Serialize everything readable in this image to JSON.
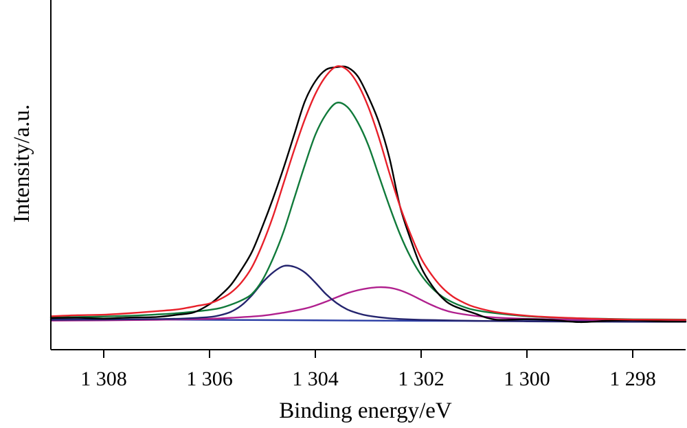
{
  "chart_data": {
    "type": "line",
    "title": "",
    "xlabel": "Binding energy/eV",
    "ylabel": "Intensity/a.u.",
    "xlim": [
      1309,
      1297
    ],
    "x_reversed": true,
    "ylim": [
      -0.1,
      1.1
    ],
    "y_ticks_shown": false,
    "grid": false,
    "legend": "none",
    "x_ticks": [
      {
        "value": 1308,
        "label": "1 308"
      },
      {
        "value": 1306,
        "label": "1 306"
      },
      {
        "value": 1304,
        "label": "1 304"
      },
      {
        "value": 1302,
        "label": "1 302"
      },
      {
        "value": 1300,
        "label": "1 300"
      },
      {
        "value": 1298,
        "label": "1 298"
      }
    ],
    "series": [
      {
        "color": "#000000",
        "style": "noisy",
        "points": [
          [
            1309.0,
            0.011
          ],
          [
            1308.5,
            0.012
          ],
          [
            1308.0,
            0.009
          ],
          [
            1307.5,
            0.013
          ],
          [
            1307.0,
            0.015
          ],
          [
            1306.6,
            0.024
          ],
          [
            1306.3,
            0.033
          ],
          [
            1306.0,
            0.065
          ],
          [
            1305.8,
            0.099
          ],
          [
            1305.6,
            0.14
          ],
          [
            1305.4,
            0.2
          ],
          [
            1305.2,
            0.27
          ],
          [
            1305.0,
            0.37
          ],
          [
            1304.8,
            0.48
          ],
          [
            1304.6,
            0.6
          ],
          [
            1304.4,
            0.73
          ],
          [
            1304.2,
            0.86
          ],
          [
            1304.0,
            0.94
          ],
          [
            1303.8,
            0.985
          ],
          [
            1303.6,
            0.995
          ],
          [
            1303.4,
            0.995
          ],
          [
            1303.2,
            0.96
          ],
          [
            1303.0,
            0.88
          ],
          [
            1302.8,
            0.78
          ],
          [
            1302.6,
            0.64
          ],
          [
            1302.4,
            0.45
          ],
          [
            1302.2,
            0.32
          ],
          [
            1302.0,
            0.21
          ],
          [
            1301.8,
            0.14
          ],
          [
            1301.6,
            0.09
          ],
          [
            1301.4,
            0.06
          ],
          [
            1301.0,
            0.03
          ],
          [
            1300.6,
            0.005
          ],
          [
            1300.0,
            0.006
          ],
          [
            1299.5,
            0.003
          ],
          [
            1299.0,
            -0.005
          ],
          [
            1298.5,
            0.0
          ],
          [
            1298.0,
            0.002
          ],
          [
            1297.5,
            -0.002
          ],
          [
            1297.0,
            -0.003
          ]
        ]
      },
      {
        "color": "#e8202a",
        "style": "envelope",
        "points": [
          [
            1309.0,
            0.018
          ],
          [
            1308.5,
            0.022
          ],
          [
            1308.0,
            0.024
          ],
          [
            1307.5,
            0.03
          ],
          [
            1307.0,
            0.038
          ],
          [
            1306.6,
            0.045
          ],
          [
            1306.2,
            0.06
          ],
          [
            1306.0,
            0.068
          ],
          [
            1305.8,
            0.085
          ],
          [
            1305.6,
            0.11
          ],
          [
            1305.4,
            0.15
          ],
          [
            1305.2,
            0.21
          ],
          [
            1305.0,
            0.3
          ],
          [
            1304.8,
            0.41
          ],
          [
            1304.6,
            0.54
          ],
          [
            1304.4,
            0.67
          ],
          [
            1304.2,
            0.79
          ],
          [
            1304.0,
            0.89
          ],
          [
            1303.8,
            0.96
          ],
          [
            1303.6,
            0.998
          ],
          [
            1303.4,
            0.985
          ],
          [
            1303.2,
            0.93
          ],
          [
            1303.0,
            0.84
          ],
          [
            1302.8,
            0.72
          ],
          [
            1302.6,
            0.58
          ],
          [
            1302.4,
            0.45
          ],
          [
            1302.2,
            0.34
          ],
          [
            1302.0,
            0.245
          ],
          [
            1301.8,
            0.18
          ],
          [
            1301.6,
            0.13
          ],
          [
            1301.4,
            0.095
          ],
          [
            1301.2,
            0.072
          ],
          [
            1301.0,
            0.055
          ],
          [
            1300.6,
            0.035
          ],
          [
            1300.0,
            0.02
          ],
          [
            1299.5,
            0.014
          ],
          [
            1299.0,
            0.01
          ],
          [
            1298.5,
            0.007
          ],
          [
            1298.0,
            0.005
          ],
          [
            1297.0,
            0.004
          ]
        ]
      },
      {
        "color": "#107a3a",
        "style": "component",
        "points": [
          [
            1309.0,
            0.013
          ],
          [
            1308.5,
            0.015
          ],
          [
            1308.0,
            0.017
          ],
          [
            1307.5,
            0.02
          ],
          [
            1307.0,
            0.025
          ],
          [
            1306.6,
            0.03
          ],
          [
            1306.2,
            0.038
          ],
          [
            1306.0,
            0.043
          ],
          [
            1305.8,
            0.05
          ],
          [
            1305.6,
            0.063
          ],
          [
            1305.4,
            0.08
          ],
          [
            1305.2,
            0.105
          ],
          [
            1305.0,
            0.16
          ],
          [
            1304.8,
            0.245
          ],
          [
            1304.6,
            0.35
          ],
          [
            1304.4,
            0.48
          ],
          [
            1304.2,
            0.61
          ],
          [
            1304.0,
            0.73
          ],
          [
            1303.8,
            0.81
          ],
          [
            1303.6,
            0.855
          ],
          [
            1303.4,
            0.84
          ],
          [
            1303.2,
            0.78
          ],
          [
            1303.0,
            0.69
          ],
          [
            1302.8,
            0.57
          ],
          [
            1302.6,
            0.45
          ],
          [
            1302.4,
            0.34
          ],
          [
            1302.2,
            0.25
          ],
          [
            1302.0,
            0.18
          ],
          [
            1301.8,
            0.13
          ],
          [
            1301.6,
            0.095
          ],
          [
            1301.4,
            0.072
          ],
          [
            1301.2,
            0.055
          ],
          [
            1301.0,
            0.043
          ],
          [
            1300.6,
            0.03
          ],
          [
            1300.0,
            0.018
          ],
          [
            1299.5,
            0.013
          ],
          [
            1299.0,
            0.01
          ],
          [
            1298.5,
            0.008
          ],
          [
            1298.0,
            0.006
          ],
          [
            1297.0,
            0.005
          ]
        ]
      },
      {
        "color": "#24246e",
        "style": "component",
        "points": [
          [
            1309.0,
            0.004
          ],
          [
            1308.0,
            0.005
          ],
          [
            1307.0,
            0.007
          ],
          [
            1306.5,
            0.009
          ],
          [
            1306.0,
            0.015
          ],
          [
            1305.8,
            0.022
          ],
          [
            1305.6,
            0.035
          ],
          [
            1305.4,
            0.06
          ],
          [
            1305.2,
            0.1
          ],
          [
            1305.0,
            0.15
          ],
          [
            1304.8,
            0.19
          ],
          [
            1304.6,
            0.215
          ],
          [
            1304.4,
            0.212
          ],
          [
            1304.2,
            0.19
          ],
          [
            1304.0,
            0.15
          ],
          [
            1303.8,
            0.105
          ],
          [
            1303.6,
            0.07
          ],
          [
            1303.4,
            0.045
          ],
          [
            1303.2,
            0.03
          ],
          [
            1303.0,
            0.02
          ],
          [
            1302.6,
            0.01
          ],
          [
            1302.0,
            0.004
          ],
          [
            1301.0,
            0.0
          ],
          [
            1300.0,
            -0.002
          ],
          [
            1298.0,
            -0.004
          ],
          [
            1297.0,
            -0.004
          ]
        ]
      },
      {
        "color": "#b0208e",
        "style": "component",
        "points": [
          [
            1309.0,
            0.001
          ],
          [
            1308.0,
            0.002
          ],
          [
            1307.0,
            0.004
          ],
          [
            1306.0,
            0.008
          ],
          [
            1305.5,
            0.013
          ],
          [
            1305.0,
            0.02
          ],
          [
            1304.6,
            0.032
          ],
          [
            1304.2,
            0.048
          ],
          [
            1304.0,
            0.06
          ],
          [
            1303.8,
            0.075
          ],
          [
            1303.6,
            0.092
          ],
          [
            1303.4,
            0.108
          ],
          [
            1303.2,
            0.12
          ],
          [
            1303.0,
            0.128
          ],
          [
            1302.8,
            0.132
          ],
          [
            1302.6,
            0.13
          ],
          [
            1302.4,
            0.12
          ],
          [
            1302.2,
            0.103
          ],
          [
            1302.0,
            0.082
          ],
          [
            1301.8,
            0.062
          ],
          [
            1301.6,
            0.045
          ],
          [
            1301.4,
            0.033
          ],
          [
            1301.0,
            0.02
          ],
          [
            1300.6,
            0.013
          ],
          [
            1300.0,
            0.008
          ],
          [
            1299.0,
            0.004
          ],
          [
            1298.0,
            0.002
          ],
          [
            1297.0,
            0.001
          ]
        ]
      },
      {
        "color": "#2c3fa6",
        "style": "baseline",
        "points": [
          [
            1309.0,
            0.006
          ],
          [
            1306.0,
            0.004
          ],
          [
            1304.0,
            0.002
          ],
          [
            1302.0,
            0.0
          ],
          [
            1300.0,
            -0.001
          ],
          [
            1298.0,
            -0.002
          ],
          [
            1297.0,
            -0.002
          ]
        ]
      }
    ]
  }
}
